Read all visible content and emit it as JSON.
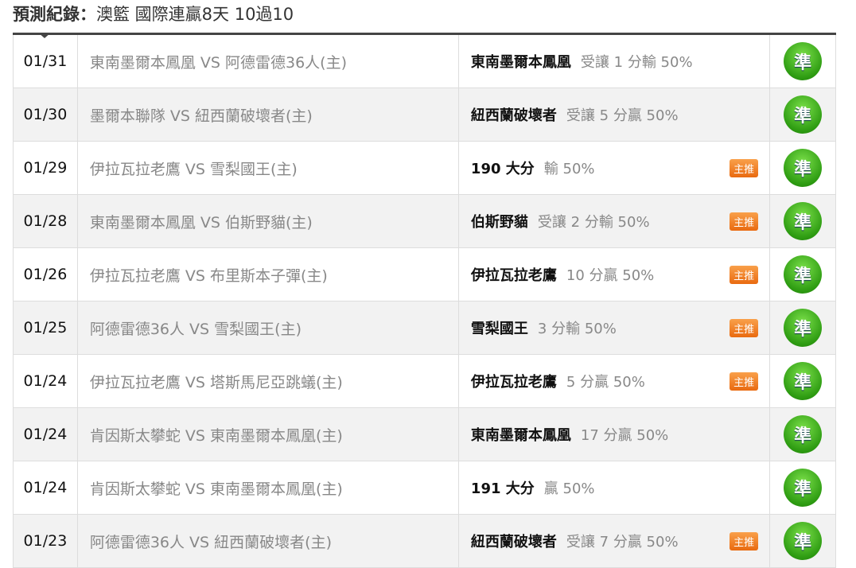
{
  "title": {
    "label": "預測紀錄：",
    "text": "澳籃 國際連贏8天 10過10"
  },
  "rows": [
    {
      "date": "01/31",
      "match": "東南墨爾本鳳凰 VS 阿德雷德36人(主)",
      "team": "東南墨爾本鳳凰",
      "odds": "受讓 1 分輸 50%",
      "badge": "",
      "result": "準"
    },
    {
      "date": "01/30",
      "match": "墨爾本聯隊 VS 紐西蘭破壞者(主)",
      "team": "紐西蘭破壞者",
      "odds": "受讓 5 分贏 50%",
      "badge": "",
      "result": "準"
    },
    {
      "date": "01/29",
      "match": "伊拉瓦拉老鷹 VS 雪梨國王(主)",
      "team": "190 大分",
      "odds": "輸 50%",
      "badge": "主推",
      "result": "準"
    },
    {
      "date": "01/28",
      "match": "東南墨爾本鳳凰 VS 伯斯野貓(主)",
      "team": "伯斯野貓",
      "odds": "受讓 2 分輸 50%",
      "badge": "主推",
      "result": "準"
    },
    {
      "date": "01/26",
      "match": "伊拉瓦拉老鷹 VS 布里斯本子彈(主)",
      "team": "伊拉瓦拉老鷹",
      "odds": "10 分贏 50%",
      "badge": "主推",
      "result": "準"
    },
    {
      "date": "01/25",
      "match": "阿德雷德36人 VS 雪梨國王(主)",
      "team": "雪梨國王",
      "odds": "3 分輸 50%",
      "badge": "主推",
      "result": "準"
    },
    {
      "date": "01/24",
      "match": "伊拉瓦拉老鷹 VS 塔斯馬尼亞跳蟻(主)",
      "team": "伊拉瓦拉老鷹",
      "odds": "5 分贏 50%",
      "badge": "主推",
      "result": "準"
    },
    {
      "date": "01/24",
      "match": "肯因斯太攀蛇 VS 東南墨爾本鳳凰(主)",
      "team": "東南墨爾本鳳凰",
      "odds": "17 分贏 50%",
      "badge": "",
      "result": "準"
    },
    {
      "date": "01/24",
      "match": "肯因斯太攀蛇 VS 東南墨爾本鳳凰(主)",
      "team": "191 大分",
      "odds": "贏 50%",
      "badge": "",
      "result": "準"
    },
    {
      "date": "01/23",
      "match": "阿德雷德36人 VS 紐西蘭破壞者(主)",
      "team": "紐西蘭破壞者",
      "odds": "受讓 7 分贏 50%",
      "badge": "主推",
      "result": "準"
    }
  ]
}
